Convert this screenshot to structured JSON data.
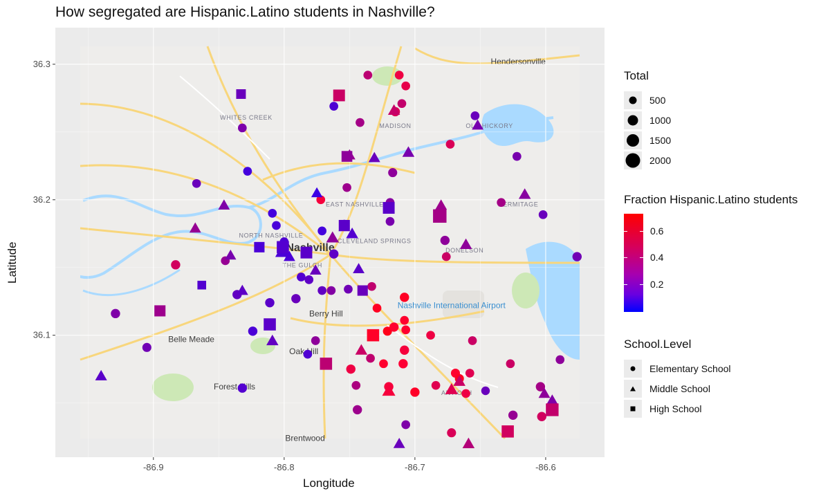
{
  "chart_data": {
    "type": "scatter",
    "title": "How segregated are Hispanic.Latino students in Nashville?",
    "xlabel": "Longitude",
    "ylabel": "Latitude",
    "xlim": [
      -86.975,
      -86.555
    ],
    "ylim": [
      36.01,
      36.327
    ],
    "x_ticks": [
      -86.9,
      -86.8,
      -86.7,
      -86.6
    ],
    "x_tick_labels": [
      "-86.9",
      "-86.8",
      "-86.7",
      "-86.6"
    ],
    "y_ticks": [
      36.1,
      36.2,
      36.3
    ],
    "y_tick_labels": [
      "36.1",
      "36.2",
      "36.3"
    ],
    "grid": true,
    "legend_position": "right",
    "size_legend": {
      "title": "Total",
      "values": [
        500,
        1000,
        1500,
        2000
      ],
      "labels": [
        "500",
        "1000",
        "1500",
        "2000"
      ]
    },
    "color_legend": {
      "title": "Fraction Hispanic.Latino students",
      "ticks": [
        0.6,
        0.4,
        0.2
      ],
      "labels": [
        "0.6",
        "0.4",
        "0.2"
      ],
      "low_color": "#0000ff",
      "high_color": "#ff0000",
      "range": [
        0.0,
        0.72
      ]
    },
    "shape_legend": {
      "title": "School.Level",
      "items": [
        {
          "label": "Elementary School",
          "shape": "circle"
        },
        {
          "label": "Middle School",
          "shape": "triangle"
        },
        {
          "label": "High School",
          "shape": "square"
        }
      ]
    },
    "basemap_labels": [
      {
        "text": "Hendersonville",
        "lon": -86.621,
        "lat": 36.3
      },
      {
        "text": "WHITES CREEK",
        "lon": -86.829,
        "lat": 36.259
      },
      {
        "text": "MADISON",
        "lon": -86.715,
        "lat": 36.253
      },
      {
        "text": "OLD HICKORY",
        "lon": -86.643,
        "lat": 36.253
      },
      {
        "text": "EAST NASHVILLE",
        "lon": -86.746,
        "lat": 36.195
      },
      {
        "text": "NORTH NASHVILLE",
        "lon": -86.81,
        "lat": 36.172
      },
      {
        "text": "CLEVELAND SPRINGS",
        "lon": -86.731,
        "lat": 36.168
      },
      {
        "text": "HERMITAGE",
        "lon": -86.621,
        "lat": 36.195
      },
      {
        "text": "Nashville",
        "lon": -86.78,
        "lat": 36.162
      },
      {
        "text": "THE GULCH",
        "lon": -86.786,
        "lat": 36.15
      },
      {
        "text": "DONELSON",
        "lon": -86.662,
        "lat": 36.161
      },
      {
        "text": "Nashville International Airport",
        "lon": -86.672,
        "lat": 36.12
      },
      {
        "text": "Berry Hill",
        "lon": -86.768,
        "lat": 36.114
      },
      {
        "text": "Belle Meade",
        "lon": -86.871,
        "lat": 36.095
      },
      {
        "text": "Oak Hill",
        "lon": -86.785,
        "lat": 36.086
      },
      {
        "text": "Forest Hills",
        "lon": -86.838,
        "lat": 36.06
      },
      {
        "text": "Brentwood",
        "lon": -86.784,
        "lat": 36.022
      },
      {
        "text": "ANTIOCH",
        "lon": -86.668,
        "lat": 36.056
      }
    ],
    "series": [
      {
        "shape": "circle",
        "points": [
          [
            -86.929,
            36.116,
            420,
            0.26
          ],
          [
            -86.905,
            36.091,
            380,
            0.22
          ],
          [
            -86.883,
            36.152,
            420,
            0.48
          ],
          [
            -86.867,
            36.212,
            330,
            0.2
          ],
          [
            -86.845,
            36.155,
            330,
            0.32
          ],
          [
            -86.836,
            36.13,
            420,
            0.18
          ],
          [
            -86.832,
            36.253,
            330,
            0.25
          ],
          [
            -86.832,
            36.061,
            420,
            0.14
          ],
          [
            -86.828,
            36.221,
            330,
            0.1
          ],
          [
            -86.824,
            36.103,
            420,
            0.12
          ],
          [
            -86.811,
            36.124,
            420,
            0.16
          ],
          [
            -86.809,
            36.19,
            330,
            0.1
          ],
          [
            -86.806,
            36.181,
            330,
            0.11
          ],
          [
            -86.8,
            36.169,
            330,
            0.13
          ],
          [
            -86.791,
            36.127,
            420,
            0.2
          ],
          [
            -86.787,
            36.143,
            330,
            0.14
          ],
          [
            -86.782,
            36.086,
            330,
            0.13
          ],
          [
            -86.781,
            36.141,
            330,
            0.17
          ],
          [
            -86.776,
            36.096,
            330,
            0.3
          ],
          [
            -86.772,
            36.2,
            330,
            0.58
          ],
          [
            -86.771,
            36.177,
            330,
            0.1
          ],
          [
            -86.771,
            36.133,
            330,
            0.18
          ],
          [
            -86.764,
            36.133,
            330,
            0.27
          ],
          [
            -86.762,
            36.16,
            420,
            0.17
          ],
          [
            -86.762,
            36.269,
            330,
            0.13
          ],
          [
            -86.754,
            36.182,
            330,
            0.14
          ],
          [
            -86.752,
            36.209,
            330,
            0.34
          ],
          [
            -86.751,
            36.134,
            330,
            0.22
          ],
          [
            -86.749,
            36.075,
            420,
            0.56
          ],
          [
            -86.745,
            36.063,
            330,
            0.38
          ],
          [
            -86.744,
            36.045,
            420,
            0.34
          ],
          [
            -86.742,
            36.257,
            330,
            0.36
          ],
          [
            -86.736,
            36.292,
            330,
            0.42
          ],
          [
            -86.734,
            36.083,
            330,
            0.43
          ],
          [
            -86.733,
            36.136,
            330,
            0.43
          ],
          [
            -86.729,
            36.12,
            330,
            0.66
          ],
          [
            -86.724,
            36.079,
            330,
            0.62
          ],
          [
            -86.721,
            36.103,
            380,
            0.68
          ],
          [
            -86.72,
            36.062,
            420,
            0.58
          ],
          [
            -86.719,
            36.198,
            330,
            0.28
          ],
          [
            -86.719,
            36.184,
            330,
            0.24
          ],
          [
            -86.717,
            36.22,
            380,
            0.3
          ],
          [
            -86.716,
            36.106,
            420,
            0.62
          ],
          [
            -86.715,
            36.265,
            420,
            0.5
          ],
          [
            -86.712,
            36.292,
            330,
            0.56
          ],
          [
            -86.71,
            36.271,
            330,
            0.44
          ],
          [
            -86.709,
            36.079,
            420,
            0.6
          ],
          [
            -86.708,
            36.128,
            420,
            0.65
          ],
          [
            -86.708,
            36.111,
            330,
            0.62
          ],
          [
            -86.708,
            36.089,
            420,
            0.58
          ],
          [
            -86.707,
            36.284,
            330,
            0.54
          ],
          [
            -86.707,
            36.104,
            330,
            0.62
          ],
          [
            -86.707,
            36.034,
            330,
            0.26
          ],
          [
            -86.7,
            36.058,
            420,
            0.64
          ],
          [
            -86.688,
            36.1,
            330,
            0.56
          ],
          [
            -86.684,
            36.063,
            330,
            0.52
          ],
          [
            -86.677,
            36.17,
            420,
            0.3
          ],
          [
            -86.676,
            36.158,
            330,
            0.46
          ],
          [
            -86.673,
            36.241,
            330,
            0.5
          ],
          [
            -86.672,
            36.028,
            380,
            0.5
          ],
          [
            -86.669,
            36.072,
            380,
            0.62
          ],
          [
            -86.666,
            36.068,
            380,
            0.66
          ],
          [
            -86.661,
            36.057,
            330,
            0.56
          ],
          [
            -86.658,
            36.072,
            330,
            0.52
          ],
          [
            -86.656,
            36.096,
            330,
            0.46
          ],
          [
            -86.654,
            36.262,
            330,
            0.2
          ],
          [
            -86.646,
            36.059,
            300,
            0.2
          ],
          [
            -86.634,
            36.198,
            330,
            0.36
          ],
          [
            -86.627,
            36.079,
            330,
            0.46
          ],
          [
            -86.625,
            36.041,
            420,
            0.32
          ],
          [
            -86.622,
            36.232,
            330,
            0.24
          ],
          [
            -86.604,
            36.062,
            420,
            0.36
          ],
          [
            -86.603,
            36.04,
            420,
            0.48
          ],
          [
            -86.602,
            36.189,
            330,
            0.2
          ],
          [
            -86.589,
            36.082,
            330,
            0.3
          ],
          [
            -86.576,
            36.158,
            420,
            0.22
          ]
        ]
      },
      {
        "shape": "triangle",
        "points": [
          [
            -86.94,
            36.07,
            460,
            0.16
          ],
          [
            -86.868,
            36.179,
            430,
            0.32
          ],
          [
            -86.846,
            36.196,
            430,
            0.26
          ],
          [
            -86.841,
            36.159,
            380,
            0.24
          ],
          [
            -86.832,
            36.133,
            430,
            0.17
          ],
          [
            -86.809,
            36.096,
            500,
            0.18
          ],
          [
            -86.801,
            36.162,
            1150,
            0.12
          ],
          [
            -86.796,
            36.158,
            430,
            0.12
          ],
          [
            -86.776,
            36.148,
            430,
            0.2
          ],
          [
            -86.775,
            36.205,
            380,
            0.08
          ],
          [
            -86.763,
            36.172,
            600,
            0.3
          ],
          [
            -86.754,
            36.18,
            430,
            0.18
          ],
          [
            -86.75,
            36.233,
            430,
            0.32
          ],
          [
            -86.748,
            36.175,
            500,
            0.14
          ],
          [
            -86.743,
            36.149,
            430,
            0.16
          ],
          [
            -86.741,
            36.089,
            500,
            0.46
          ],
          [
            -86.731,
            36.231,
            430,
            0.2
          ],
          [
            -86.72,
            36.059,
            700,
            0.58
          ],
          [
            -86.716,
            36.266,
            500,
            0.45
          ],
          [
            -86.712,
            36.02,
            430,
            0.2
          ],
          [
            -86.705,
            36.235,
            500,
            0.24
          ],
          [
            -86.68,
            36.196,
            430,
            0.34
          ],
          [
            -86.672,
            36.06,
            600,
            0.52
          ],
          [
            -86.666,
            36.066,
            500,
            0.46
          ],
          [
            -86.661,
            36.167,
            500,
            0.3
          ],
          [
            -86.659,
            36.02,
            500,
            0.4
          ],
          [
            -86.652,
            36.255,
            430,
            0.24
          ],
          [
            -86.616,
            36.204,
            500,
            0.28
          ],
          [
            -86.601,
            36.057,
            430,
            0.3
          ],
          [
            -86.595,
            36.052,
            430,
            0.26
          ]
        ]
      },
      {
        "shape": "square",
        "points": [
          [
            -86.895,
            36.118,
            1000,
            0.34
          ],
          [
            -86.863,
            36.137,
            400,
            0.14
          ],
          [
            -86.833,
            36.278,
            600,
            0.2
          ],
          [
            -86.819,
            36.165,
            800,
            0.12
          ],
          [
            -86.811,
            36.108,
            1350,
            0.16
          ],
          [
            -86.801,
            36.165,
            1350,
            0.14
          ],
          [
            -86.783,
            36.161,
            1200,
            0.16
          ],
          [
            -86.768,
            36.079,
            1350,
            0.42
          ],
          [
            -86.758,
            36.277,
            1200,
            0.46
          ],
          [
            -86.754,
            36.181,
            1000,
            0.16
          ],
          [
            -86.752,
            36.232,
            900,
            0.3
          ],
          [
            -86.74,
            36.133,
            800,
            0.2
          ],
          [
            -86.732,
            36.1,
            1350,
            0.64
          ],
          [
            -86.72,
            36.194,
            1200,
            0.16
          ],
          [
            -86.681,
            36.188,
            1850,
            0.36
          ],
          [
            -86.629,
            36.029,
            1350,
            0.48
          ],
          [
            -86.595,
            36.045,
            1550,
            0.44
          ]
        ]
      }
    ]
  }
}
